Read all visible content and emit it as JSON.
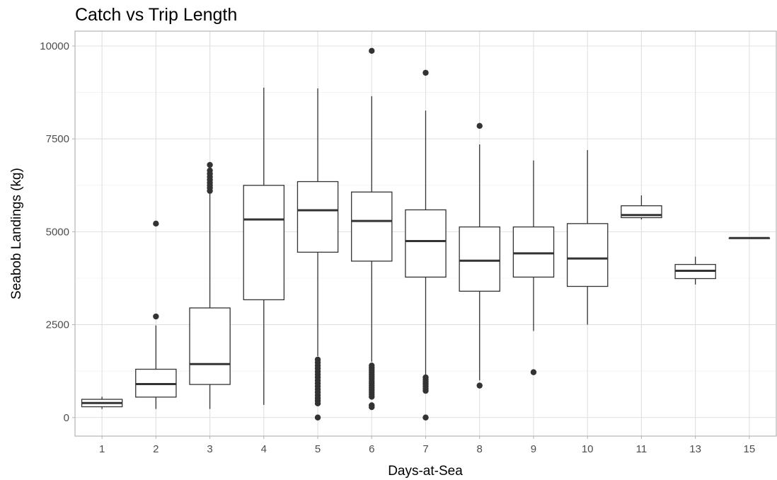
{
  "chart_data": {
    "type": "boxplot",
    "title": "Catch vs Trip Length",
    "xlabel": "Days-at-Sea",
    "ylabel": "Seabob Landings (kg)",
    "ylim": [
      -500,
      10400
    ],
    "y_ticks": [
      0,
      2500,
      5000,
      7500,
      10000
    ],
    "y_tick_labels": [
      "0",
      "2500",
      "5000",
      "7500",
      "10000"
    ],
    "grid": true,
    "categories": [
      "1",
      "2",
      "3",
      "4",
      "5",
      "6",
      "7",
      "8",
      "9",
      "10",
      "11",
      "13",
      "15"
    ],
    "boxes": [
      {
        "category": "1",
        "low": 230,
        "q1": 290,
        "median": 390,
        "q3": 490,
        "high": 560,
        "outliers": []
      },
      {
        "category": "2",
        "low": 230,
        "q1": 550,
        "median": 900,
        "q3": 1300,
        "high": 2480,
        "outliers": [
          2720,
          5220
        ]
      },
      {
        "category": "3",
        "low": 230,
        "q1": 890,
        "median": 1440,
        "q3": 2950,
        "high": 6050,
        "outliers": [
          6100,
          6180,
          6250,
          6320,
          6400,
          6480,
          6560,
          6650,
          6800
        ]
      },
      {
        "category": "4",
        "low": 340,
        "q1": 3170,
        "median": 5330,
        "q3": 6250,
        "high": 8880,
        "outliers": []
      },
      {
        "category": "5",
        "low": 1650,
        "q1": 4450,
        "median": 5580,
        "q3": 6350,
        "high": 8860,
        "outliers": [
          0,
          380,
          450,
          520,
          600,
          680,
          760,
          840,
          920,
          1000,
          1080,
          1160,
          1240,
          1320,
          1400,
          1480,
          1560
        ]
      },
      {
        "category": "6",
        "low": 1500,
        "q1": 4210,
        "median": 5290,
        "q3": 6070,
        "high": 8650,
        "outliers": [
          280,
          330,
          560,
          620,
          680,
          740,
          800,
          860,
          920,
          980,
          1040,
          1100,
          1160,
          1220,
          1280,
          1340,
          1400,
          9870
        ]
      },
      {
        "category": "7",
        "low": 1150,
        "q1": 3780,
        "median": 4750,
        "q3": 5590,
        "high": 8260,
        "outliers": [
          0,
          720,
          780,
          840,
          900,
          960,
          1020,
          1080,
          9280
        ]
      },
      {
        "category": "8",
        "low": 1000,
        "q1": 3400,
        "median": 4220,
        "q3": 5130,
        "high": 7350,
        "outliers": [
          860,
          7850
        ]
      },
      {
        "category": "9",
        "low": 2330,
        "q1": 3780,
        "median": 4420,
        "q3": 5130,
        "high": 6920,
        "outliers": [
          1220
        ]
      },
      {
        "category": "10",
        "low": 2500,
        "q1": 3530,
        "median": 4280,
        "q3": 5220,
        "high": 7200,
        "outliers": []
      },
      {
        "category": "11",
        "low": 5330,
        "q1": 5380,
        "median": 5450,
        "q3": 5700,
        "high": 5980,
        "outliers": []
      },
      {
        "category": "13",
        "low": 3580,
        "q1": 3740,
        "median": 3950,
        "q3": 4120,
        "high": 4330,
        "outliers": []
      },
      {
        "category": "15",
        "low": 4830,
        "q1": 4830,
        "median": 4830,
        "q3": 4830,
        "high": 4830,
        "outliers": []
      }
    ]
  }
}
